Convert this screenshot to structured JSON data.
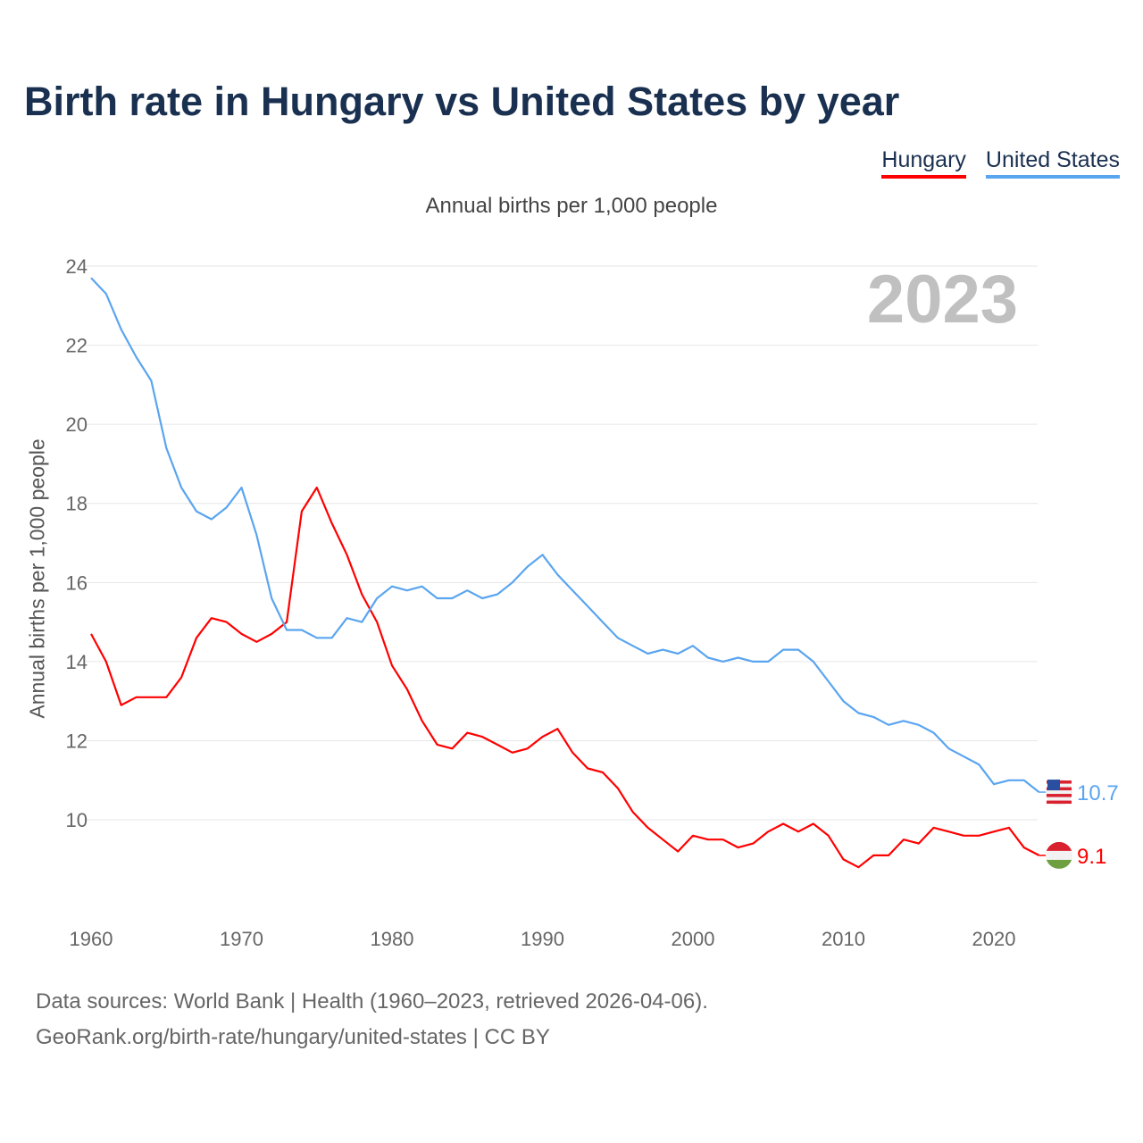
{
  "title": "Birth rate in Hungary vs United States by year",
  "legend": [
    {
      "name": "Hungary",
      "color": "#ff0000"
    },
    {
      "name": "United States",
      "color": "#5aa5f0"
    }
  ],
  "source_line1": "Data sources: World Bank | Health (1960–2023, retrieved 2026-04-06).",
  "source_line2": "GeoRank.org/birth-rate/hungary/united-states | CC BY",
  "chart_data": {
    "type": "line",
    "title": "Birth rate in Hungary vs United States by year",
    "subtitle": "Annual births per 1,000 people",
    "ylabel": "Annual births per 1,000 people",
    "xlabel": "",
    "year_watermark": "2023",
    "xlim": [
      1960,
      2023
    ],
    "ylim": [
      8,
      24
    ],
    "yticks": [
      10,
      12,
      14,
      16,
      18,
      20,
      22,
      24
    ],
    "xticks": [
      1960,
      1970,
      1980,
      1990,
      2000,
      2010,
      2020
    ],
    "grid": true,
    "legend_position": "top-right",
    "x_start": 1960,
    "series": [
      {
        "name": "Hungary",
        "color": "#ff0000",
        "end_label": "9.1",
        "values": [
          14.7,
          14.0,
          12.9,
          13.1,
          13.1,
          13.1,
          13.6,
          14.6,
          15.1,
          15.0,
          14.7,
          14.5,
          14.7,
          15.0,
          17.8,
          18.4,
          17.5,
          16.7,
          15.7,
          15.0,
          13.9,
          13.3,
          12.5,
          11.9,
          11.8,
          12.2,
          12.1,
          11.9,
          11.7,
          11.8,
          12.1,
          12.3,
          11.7,
          11.3,
          11.2,
          10.8,
          10.2,
          9.8,
          9.5,
          9.2,
          9.6,
          9.5,
          9.5,
          9.3,
          9.4,
          9.7,
          9.9,
          9.7,
          9.9,
          9.6,
          9.0,
          8.8,
          9.1,
          9.1,
          9.5,
          9.4,
          9.8,
          9.7,
          9.6,
          9.6,
          9.7,
          9.8,
          9.3,
          9.1
        ]
      },
      {
        "name": "United States",
        "color": "#5aa5f0",
        "end_label": "10.7",
        "values": [
          23.7,
          23.3,
          22.4,
          21.7,
          21.1,
          19.4,
          18.4,
          17.8,
          17.6,
          17.9,
          18.4,
          17.2,
          15.6,
          14.8,
          14.8,
          14.6,
          14.6,
          15.1,
          15.0,
          15.6,
          15.9,
          15.8,
          15.9,
          15.6,
          15.6,
          15.8,
          15.6,
          15.7,
          16.0,
          16.4,
          16.7,
          16.2,
          15.8,
          15.4,
          15.0,
          14.6,
          14.4,
          14.2,
          14.3,
          14.2,
          14.4,
          14.1,
          14.0,
          14.1,
          14.0,
          14.0,
          14.3,
          14.3,
          14.0,
          13.5,
          13.0,
          12.7,
          12.6,
          12.4,
          12.5,
          12.4,
          12.2,
          11.8,
          11.6,
          11.4,
          10.9,
          11.0,
          11.0,
          10.7
        ]
      }
    ]
  }
}
